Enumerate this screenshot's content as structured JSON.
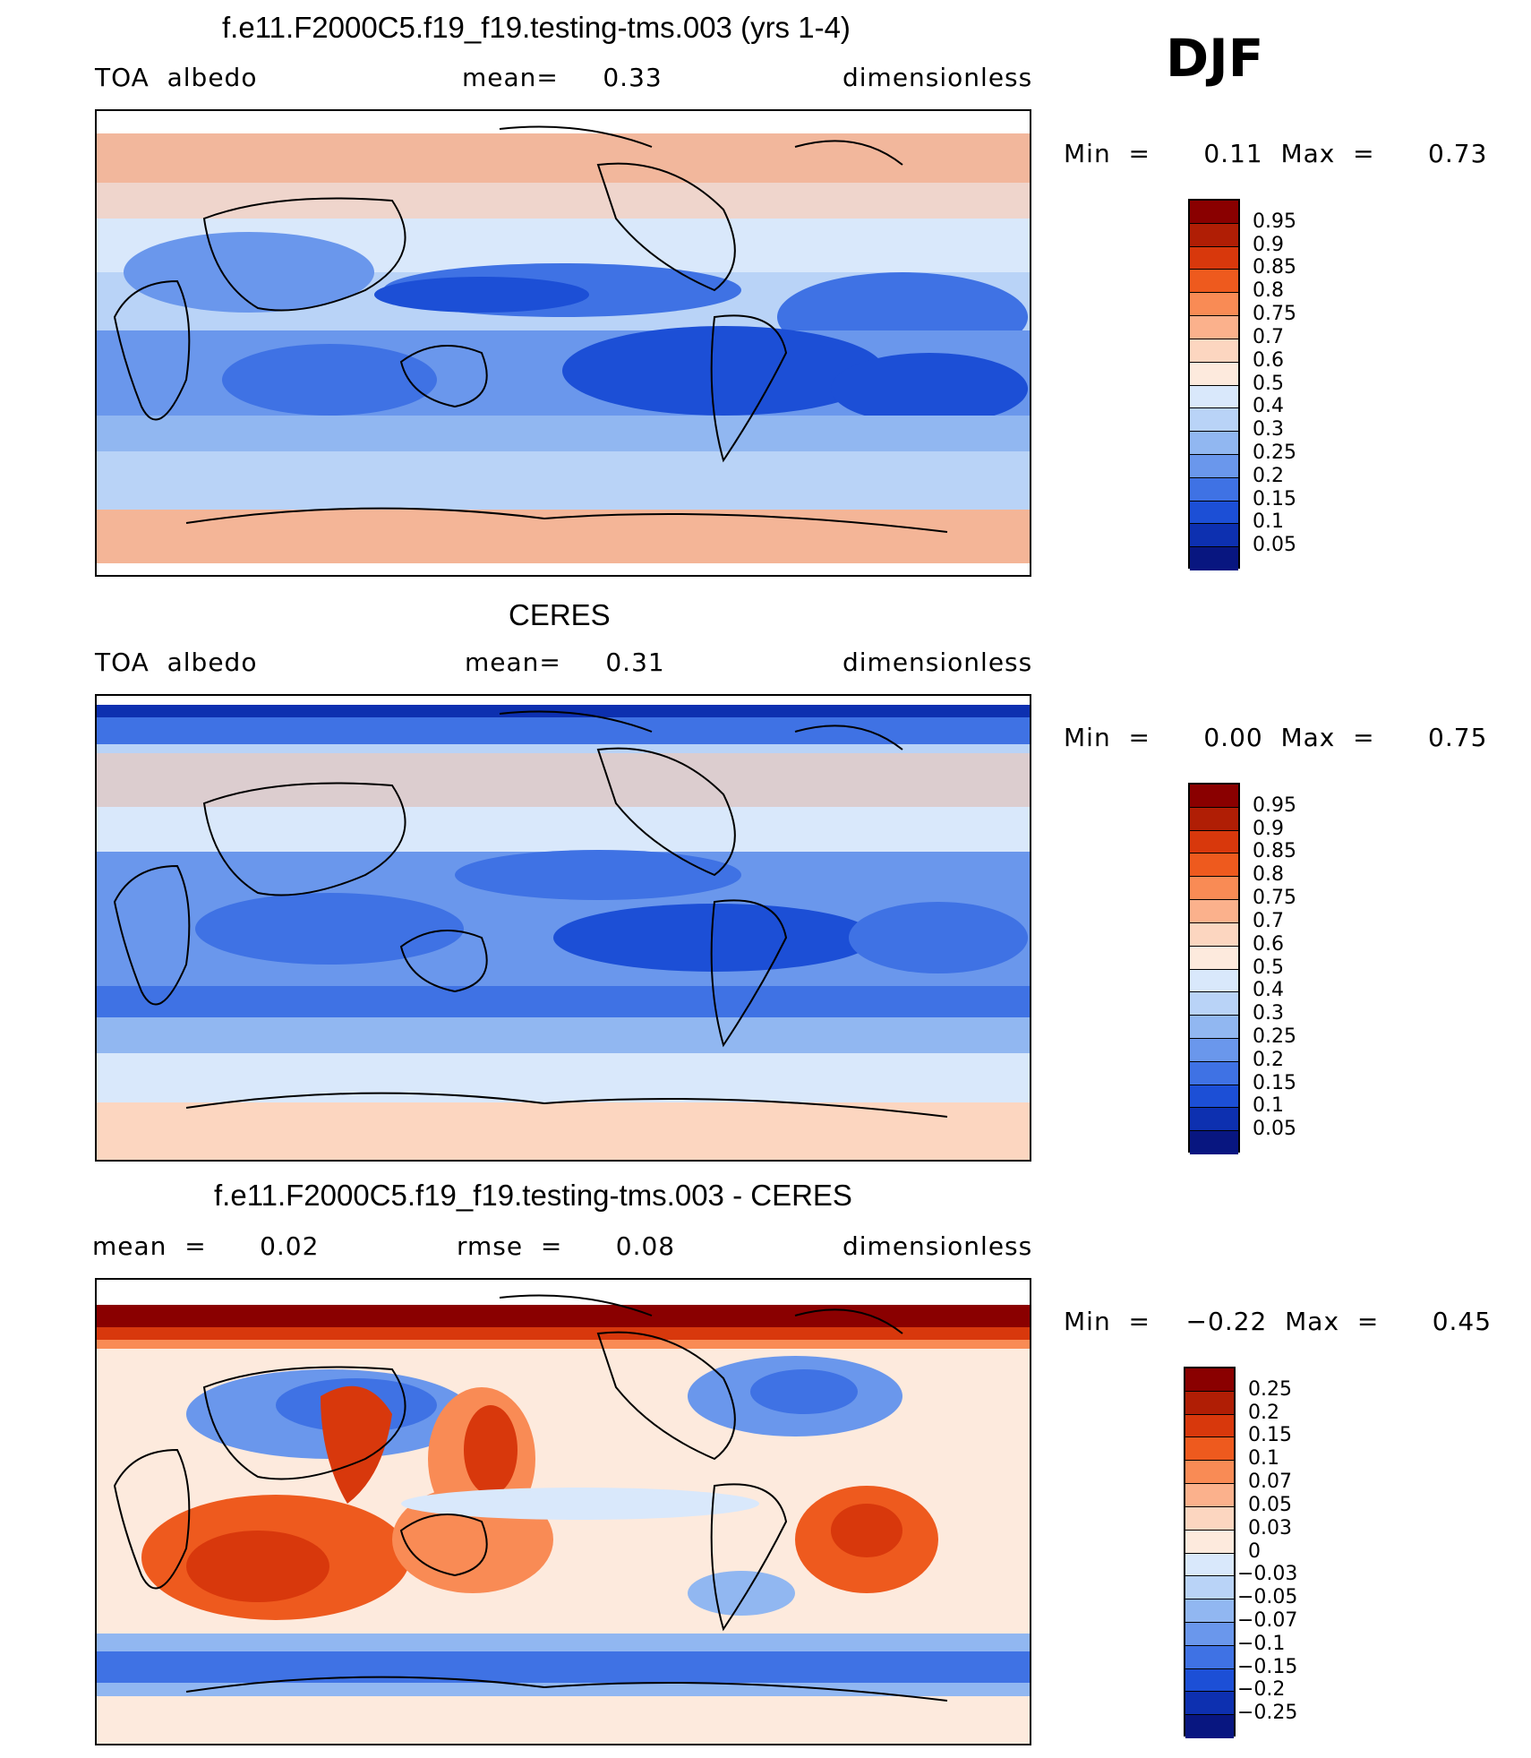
{
  "season": "DJF",
  "panels": [
    {
      "title": "f.e11.F2000C5.f19_f19.testing-tms.003 (yrs 1-4)",
      "left_text": "TOA  albedo",
      "center_text": "mean=     0.33",
      "right_text": "dimensionless",
      "minmax": "Min  =      0.11  Max  =      0.73",
      "colorbar": {
        "colors": [
          "#8a0000",
          "#b01e05",
          "#d8380c",
          "#ee5a1e",
          "#f98b55",
          "#fbb18c",
          "#fcd6c0",
          "#fdeadd",
          "#d9e8fb",
          "#b9d3f7",
          "#91b7f1",
          "#6a97ec",
          "#3f72e4",
          "#1c4fd6",
          "#0d30b0",
          "#081680"
        ],
        "labels": [
          "0.95",
          "0.9",
          "0.85",
          "0.8",
          "0.75",
          "0.7",
          "0.6",
          "0.5",
          "0.4",
          "0.3",
          "0.25",
          "0.2",
          "0.15",
          "0.1",
          "0.05"
        ]
      }
    },
    {
      "title": "CERES",
      "left_text": "TOA  albedo",
      "center_text": "mean=     0.31",
      "right_text": "dimensionless",
      "minmax": "Min  =      0.00  Max  =      0.75",
      "colorbar": {
        "colors": [
          "#8a0000",
          "#b01e05",
          "#d8380c",
          "#ee5a1e",
          "#f98b55",
          "#fbb18c",
          "#fcd6c0",
          "#fdeadd",
          "#d9e8fb",
          "#b9d3f7",
          "#91b7f1",
          "#6a97ec",
          "#3f72e4",
          "#1c4fd6",
          "#0d30b0",
          "#081680"
        ],
        "labels": [
          "0.95",
          "0.9",
          "0.85",
          "0.8",
          "0.75",
          "0.7",
          "0.6",
          "0.5",
          "0.4",
          "0.3",
          "0.25",
          "0.2",
          "0.15",
          "0.1",
          "0.05"
        ]
      }
    },
    {
      "title": "f.e11.F2000C5.f19_f19.testing-tms.003 - CERES",
      "left_text": "mean  =      0.02",
      "center_text": "rmse  =      0.08",
      "right_text": "dimensionless",
      "minmax": "Min  =    −0.22  Max  =      0.45",
      "colorbar": {
        "colors": [
          "#8a0000",
          "#b01e05",
          "#d8380c",
          "#ee5a1e",
          "#f98b55",
          "#fbb18c",
          "#fcd6c0",
          "#fdeadd",
          "#d9e8fb",
          "#b9d3f7",
          "#91b7f1",
          "#6a97ec",
          "#3f72e4",
          "#1c4fd6",
          "#0d30b0",
          "#081680"
        ],
        "labels": [
          "0.25",
          "0.2",
          "0.15",
          "0.1",
          "0.07",
          "0.05",
          "0.03",
          "0",
          "−0.03",
          "−0.05",
          "−0.07",
          "−0.1",
          "−0.15",
          "−0.2",
          "−0.25"
        ]
      }
    }
  ],
  "colors": {
    "land_outline": "#000000",
    "frame": "#000000"
  }
}
